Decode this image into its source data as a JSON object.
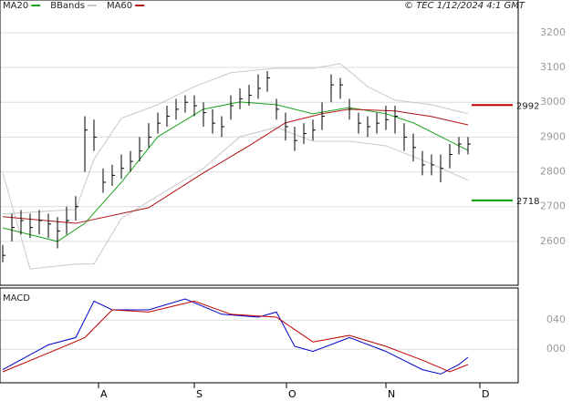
{
  "chart_data": [
    {
      "type": "ohlc",
      "source": "© TEC 1/12/2024 4:1 GMT",
      "close": [
        2560,
        2640,
        2660,
        2640,
        2660,
        2650,
        2630,
        2660,
        2700,
        2920,
        2900,
        2770,
        2790,
        2810,
        2830,
        2860,
        2900,
        2940,
        2960,
        2980,
        3000,
        2990,
        2970,
        2940,
        2930,
        2990,
        3010,
        3020,
        3040,
        3070,
        2980,
        2930,
        2890,
        2910,
        2920,
        2960,
        3050,
        3050,
        2980,
        2940,
        2930,
        2940,
        2950,
        2960,
        2900,
        2870,
        2820,
        2820,
        2810,
        2850,
        2880,
        2880
      ],
      "high": [
        2590,
        2680,
        2690,
        2680,
        2690,
        2680,
        2670,
        2700,
        2730,
        2960,
        2950,
        2810,
        2820,
        2850,
        2860,
        2900,
        2940,
        2970,
        2990,
        3010,
        3020,
        3020,
        3000,
        2980,
        2960,
        3020,
        3040,
        3050,
        3080,
        3090,
        3010,
        2970,
        2930,
        2940,
        2950,
        3000,
        3080,
        3070,
        3010,
        2970,
        2960,
        2970,
        2990,
        2990,
        2940,
        2910,
        2860,
        2850,
        2850,
        2880,
        2900,
        2900
      ],
      "low": [
        2540,
        2600,
        2620,
        2610,
        2620,
        2610,
        2580,
        2620,
        2660,
        2800,
        2860,
        2740,
        2760,
        2780,
        2800,
        2830,
        2870,
        2910,
        2930,
        2950,
        2970,
        2960,
        2930,
        2910,
        2900,
        2950,
        2980,
        2990,
        3010,
        3030,
        2950,
        2890,
        2860,
        2880,
        2890,
        2920,
        3000,
        3010,
        2950,
        2910,
        2900,
        2910,
        2920,
        2910,
        2860,
        2830,
        2790,
        2790,
        2770,
        2810,
        2850,
        2850
      ],
      "series": [
        {
          "name": "MA20",
          "color": "#1aa31a",
          "x": [
            0,
            6,
            9,
            13,
            17,
            22,
            26,
            30,
            34,
            38,
            42,
            45,
            49,
            51
          ],
          "values": [
            2639,
            2600,
            2652,
            2770,
            2901,
            2980,
            3001,
            2993,
            2967,
            2985,
            2967,
            2941,
            2888,
            2862
          ]
        },
        {
          "name": "BBands",
          "color": "#c8c8c8",
          "x": [
            0,
            8,
            10,
            13,
            17,
            21,
            25,
            30,
            34,
            37,
            40,
            43,
            47,
            51
          ],
          "values": [
            2679,
            2692,
            2836,
            2954,
            2993,
            3045,
            3085,
            3098,
            3098,
            3111,
            3045,
            3006,
            2993,
            2967
          ]
        },
        {
          "name": "MA60",
          "color": "#b01010",
          "x": [
            0,
            8,
            16,
            22,
            27,
            31,
            35,
            38,
            43,
            47,
            51
          ],
          "values": [
            2671,
            2652,
            2697,
            2797,
            2875,
            2941,
            2967,
            2980,
            2975,
            2959,
            2935
          ]
        }
      ],
      "lower_band": {
        "color": "#c8c8c8",
        "x": [
          0,
          3,
          8,
          10,
          13,
          17,
          22,
          26,
          30,
          34,
          38,
          42,
          47,
          51
        ],
        "values": [
          2797,
          2521,
          2535,
          2535,
          2666,
          2731,
          2810,
          2901,
          2928,
          2888,
          2888,
          2875,
          2823,
          2776
        ]
      },
      "levels": [
        {
          "value": 2992,
          "color": "#c00000"
        },
        {
          "value": 2718,
          "color": "#00a000"
        }
      ],
      "xlim": [
        -0.3,
        56.5
      ],
      "ylim": [
        2474,
        3294
      ],
      "yticks": [
        2600,
        2700,
        2800,
        2900,
        3000,
        3100,
        3200
      ],
      "grid": true
    },
    {
      "type": "line",
      "title": "MACD",
      "series": [
        {
          "color": "#0000cc",
          "x": [
            0,
            5,
            8,
            10,
            12,
            16,
            20,
            24,
            28,
            30,
            32,
            34,
            38,
            42,
            46,
            48,
            50,
            51
          ],
          "values": [
            -28,
            6,
            16,
            66,
            54,
            54,
            69,
            48,
            44,
            51,
            4,
            -3,
            16,
            -3,
            -28,
            -34,
            -21,
            -11
          ]
        },
        {
          "color": "#c00000",
          "x": [
            0,
            6,
            9,
            12,
            16,
            21,
            25,
            30,
            34,
            38,
            42,
            46,
            49,
            51
          ],
          "values": [
            -31,
            0,
            16,
            54,
            51,
            66,
            48,
            44,
            10,
            19,
            4,
            -15,
            -31,
            -21
          ]
        }
      ],
      "xlim": [
        -0.3,
        56.5
      ],
      "xticks": [
        {
          "value": 10.5,
          "label": "A"
        },
        {
          "value": 21,
          "label": "S"
        },
        {
          "value": 31.1,
          "label": "O"
        },
        {
          "value": 42,
          "label": "N"
        },
        {
          "value": 52.3,
          "label": "D"
        }
      ],
      "ylim": [
        -46,
        84
      ],
      "yticks": [
        {
          "value": 40,
          "label": "040"
        },
        {
          "value": 0,
          "label": "000"
        }
      ],
      "grid": true
    }
  ]
}
